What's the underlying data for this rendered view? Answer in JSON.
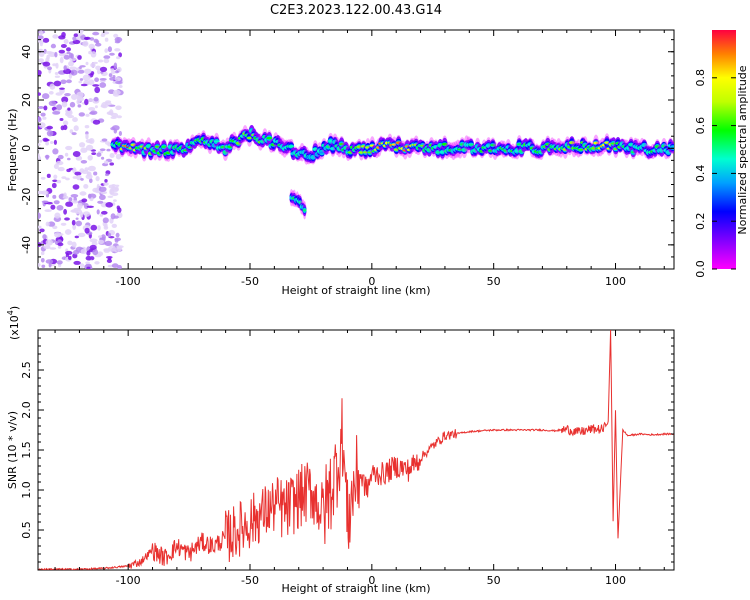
{
  "title": "C2E3.2023.122.00.43.G14",
  "colors": {
    "snr_line": "#e8312f",
    "spectrogram_strong": "#ff1a1a",
    "spectrogram_mid": "#00e070",
    "spectrogram_low": "#6a00ff",
    "spectrogram_faint": "#d8c0f5"
  },
  "chart_data": [
    {
      "type": "heatmap",
      "name": "spectrogram",
      "xlabel": "Height of straight line (km)",
      "ylabel": "Frequency (Hz)",
      "xlim": [
        -137,
        124
      ],
      "ylim": [
        -50,
        49
      ],
      "x_ticks": [
        -100,
        -50,
        0,
        50,
        100
      ],
      "y_ticks": [
        -40,
        -20,
        0,
        20,
        40
      ],
      "colorbar": {
        "label": "Normalized spectral amplitude",
        "range": [
          0,
          1
        ],
        "ticks": [
          0.0,
          0.2,
          0.4,
          0.6,
          0.8
        ],
        "tick_labels": [
          "0.0",
          "0.2",
          "0.4",
          "0.6",
          "0.8"
        ]
      },
      "ridge": [
        {
          "x": -106,
          "f": 2,
          "amp": 0.45
        },
        {
          "x": -100,
          "f": 1,
          "amp": 0.85
        },
        {
          "x": -95,
          "f": 0,
          "amp": 0.6
        },
        {
          "x": -90,
          "f": -1,
          "amp": 0.55
        },
        {
          "x": -85,
          "f": -1,
          "amp": 0.5
        },
        {
          "x": -80,
          "f": 0,
          "amp": 0.55
        },
        {
          "x": -75,
          "f": 1,
          "amp": 0.5
        },
        {
          "x": -70,
          "f": 4,
          "amp": 0.55
        },
        {
          "x": -65,
          "f": 2,
          "amp": 0.45
        },
        {
          "x": -60,
          "f": 0,
          "amp": 0.5
        },
        {
          "x": -55,
          "f": 3,
          "amp": 0.55
        },
        {
          "x": -50,
          "f": 6,
          "amp": 0.6
        },
        {
          "x": -45,
          "f": 4,
          "amp": 0.55
        },
        {
          "x": -40,
          "f": 2,
          "amp": 0.5
        },
        {
          "x": -35,
          "f": 0,
          "amp": 0.5
        },
        {
          "x": -30,
          "f": -2,
          "amp": 0.45
        },
        {
          "x": -25,
          "f": -3,
          "amp": 0.4
        },
        {
          "x": -20,
          "f": 0,
          "amp": 0.4
        },
        {
          "x": -15,
          "f": 2,
          "amp": 0.5
        },
        {
          "x": -10,
          "f": 0,
          "amp": 0.55
        },
        {
          "x": -5,
          "f": -1,
          "amp": 0.6
        },
        {
          "x": 0,
          "f": 0,
          "amp": 0.7
        },
        {
          "x": 5,
          "f": 1,
          "amp": 0.8
        },
        {
          "x": 10,
          "f": 1,
          "amp": 0.75
        },
        {
          "x": 15,
          "f": 0,
          "amp": 0.8
        },
        {
          "x": 20,
          "f": 0,
          "amp": 0.55
        },
        {
          "x": 30,
          "f": 0,
          "amp": 0.5
        },
        {
          "x": 40,
          "f": 0,
          "amp": 0.5
        },
        {
          "x": 50,
          "f": 0,
          "amp": 0.5
        },
        {
          "x": 60,
          "f": 0,
          "amp": 0.5
        },
        {
          "x": 70,
          "f": 0,
          "amp": 0.55
        },
        {
          "x": 80,
          "f": 1,
          "amp": 0.6
        },
        {
          "x": 90,
          "f": 1,
          "amp": 0.65
        },
        {
          "x": 95,
          "f": 1,
          "amp": 0.8
        },
        {
          "x": 100,
          "f": 1,
          "amp": 0.55
        },
        {
          "x": 105,
          "f": 0,
          "amp": 0.5
        },
        {
          "x": 115,
          "f": 0,
          "amp": 0.5
        },
        {
          "x": 124,
          "f": 0,
          "amp": 0.45
        }
      ],
      "secondary_branch": [
        {
          "x": -33,
          "f": -20,
          "amp": 0.45
        },
        {
          "x": -30,
          "f": -22,
          "amp": 0.5
        },
        {
          "x": -27,
          "f": -26,
          "amp": 0.45
        }
      ],
      "noise_region": {
        "x_from": -137,
        "x_to": -103,
        "amp": 0.25
      }
    },
    {
      "type": "line",
      "name": "snr",
      "xlabel": "Height of straight line (km)",
      "ylabel": "SNR (10 * v/v)",
      "scale_note": "(x10",
      "scale_exponent": "4",
      "scale_close": ")",
      "xlim": [
        -137,
        124
      ],
      "ylim": [
        0,
        3.0
      ],
      "x_ticks": [
        -100,
        -50,
        0,
        50,
        100
      ],
      "y_ticks": [
        0.5,
        1.0,
        1.5,
        2.0,
        2.5
      ],
      "y_tick_labels": [
        "0.5",
        "1.0",
        "1.5",
        "2.0",
        "2.5"
      ],
      "x": [
        -137,
        -120,
        -110,
        -100,
        -95,
        -90,
        -85,
        -80,
        -75,
        -70,
        -65,
        -60,
        -55,
        -50,
        -45,
        -40,
        -35,
        -30,
        -25,
        -20,
        -15,
        -12,
        -10,
        -7,
        -5,
        -2,
        0,
        5,
        10,
        15,
        20,
        25,
        30,
        40,
        50,
        60,
        70,
        75,
        80,
        85,
        90,
        95,
        97,
        98,
        99,
        100,
        101,
        103,
        105,
        110,
        115,
        120,
        124
      ],
      "y": [
        0.01,
        0.01,
        0.02,
        0.05,
        0.1,
        0.25,
        0.15,
        0.3,
        0.2,
        0.35,
        0.3,
        0.4,
        0.5,
        0.6,
        0.7,
        0.8,
        0.75,
        0.9,
        1.0,
        0.7,
        1.2,
        1.7,
        0.6,
        1.1,
        1.2,
        1.0,
        1.2,
        1.2,
        1.3,
        1.25,
        1.4,
        1.55,
        1.68,
        1.73,
        1.75,
        1.75,
        1.75,
        1.74,
        1.76,
        1.72,
        1.76,
        1.76,
        1.85,
        3.0,
        0.6,
        2.0,
        0.4,
        1.75,
        1.68,
        1.7,
        1.69,
        1.7,
        1.7
      ],
      "jitter": [
        {
          "from": -100,
          "to": -90,
          "amp": 0.05
        },
        {
          "from": -90,
          "to": -60,
          "amp": 0.12
        },
        {
          "from": -60,
          "to": -40,
          "amp": 0.35
        },
        {
          "from": -40,
          "to": -20,
          "amp": 0.4
        },
        {
          "from": -20,
          "to": -5,
          "amp": 0.55
        },
        {
          "from": -5,
          "to": 20,
          "amp": 0.15
        },
        {
          "from": 20,
          "to": 35,
          "amp": 0.06
        },
        {
          "from": 35,
          "to": 78,
          "amp": 0.01
        },
        {
          "from": 78,
          "to": 96,
          "amp": 0.06
        },
        {
          "from": 102,
          "to": 124,
          "amp": 0.01
        }
      ]
    }
  ]
}
